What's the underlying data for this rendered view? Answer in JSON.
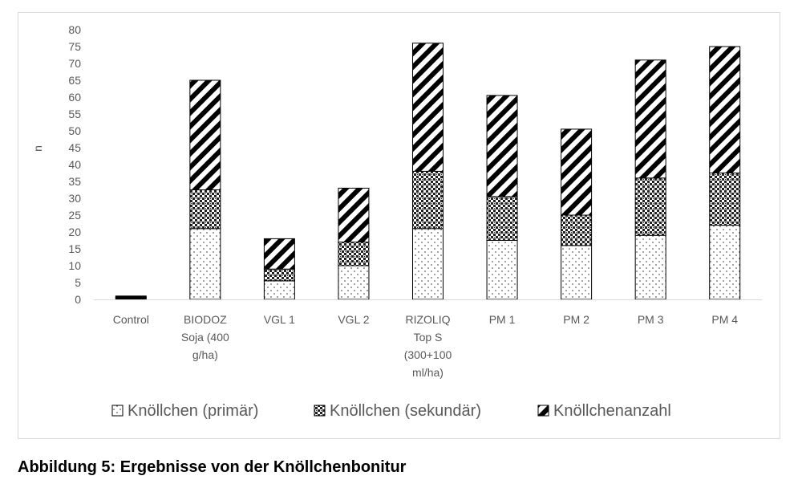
{
  "caption": "Abbildung 5: Ergebnisse von der Knöllchenbonitur",
  "chart_data": {
    "type": "bar",
    "stacked": true,
    "ylabel": "n",
    "ylim": [
      0,
      80
    ],
    "ystep": 5,
    "grid": false,
    "legend_position": "bottom",
    "categories": [
      [
        "Control"
      ],
      [
        "BIODOZ",
        "Soja (400",
        "g/ha)"
      ],
      [
        "VGL 1"
      ],
      [
        "VGL 2"
      ],
      [
        "RIZOLIQ",
        "Top S",
        "(300+100",
        "ml/ha)"
      ],
      [
        "PM 1"
      ],
      [
        "PM 2"
      ],
      [
        "PM 3"
      ],
      [
        "PM 4"
      ]
    ],
    "series": [
      {
        "name": "Knöllchen (primär)",
        "pattern": "dots",
        "values": [
          0.5,
          21,
          5.5,
          10,
          21,
          17.5,
          16,
          19,
          22
        ]
      },
      {
        "name": "Knöllchen (sekundär)",
        "pattern": "checker",
        "values": [
          0.5,
          11.5,
          3.5,
          7,
          17,
          13,
          9,
          17,
          15.5
        ]
      },
      {
        "name": "Knöllchenanzahl",
        "pattern": "diagonal",
        "values": [
          0,
          32.5,
          9,
          16,
          38,
          30,
          25.5,
          35,
          37.5
        ]
      }
    ],
    "colors": {
      "stroke": "#000000",
      "axis": "#d9d9d9",
      "text": "#595959"
    }
  }
}
